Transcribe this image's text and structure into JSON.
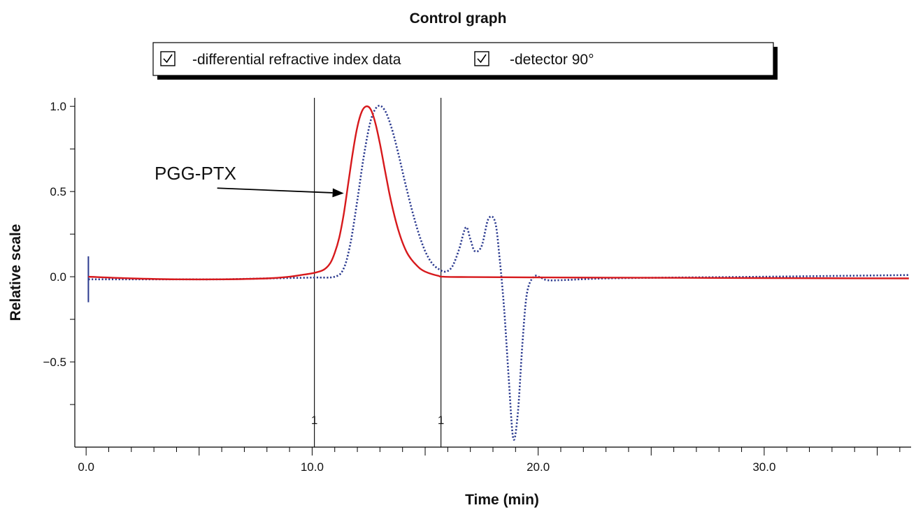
{
  "chart_data": {
    "type": "line",
    "title": "Control graph",
    "xlabel": "Time (min)",
    "ylabel": "Relative scale",
    "xlim": [
      -0.5,
      36.5
    ],
    "ylim": [
      -1.0,
      1.05
    ],
    "x_tick_labels": [
      {
        "value": 0,
        "label": "0.0"
      },
      {
        "value": 10,
        "label": "10.0"
      },
      {
        "value": 20,
        "label": "20.0"
      },
      {
        "value": 30,
        "label": "30.0"
      }
    ],
    "y_tick_labels": [
      {
        "value": 1.0,
        "label": "1.0"
      },
      {
        "value": 0.5,
        "label": "0.5"
      },
      {
        "value": 0.0,
        "label": "0.0"
      },
      {
        "value": -0.5,
        "label": "−0.5"
      }
    ],
    "y_minor_ticks": [
      0.75,
      0.25,
      -0.25,
      -0.75
    ],
    "grid": false,
    "legend": {
      "placement": "top",
      "entries": [
        {
          "label": "-differential refractive index data",
          "checked": true
        },
        {
          "label": "-detector 90°",
          "checked": true
        }
      ]
    },
    "vertical_markers": [
      {
        "x": 10.1,
        "label": "1"
      },
      {
        "x": 15.7,
        "label": "1"
      }
    ],
    "start_marker": {
      "x": 0.1,
      "y_range": [
        0.12,
        -0.15
      ]
    },
    "annotation": {
      "text": "PGG-PTX",
      "arrow_from": [
        5.8,
        0.52
      ],
      "arrow_to": [
        11.4,
        0.49
      ]
    },
    "series": [
      {
        "name": "-differential refractive index data",
        "color": "#d7191c",
        "style": "solid",
        "x": [
          0.1,
          2,
          4,
          6,
          8,
          9,
          9.5,
          10,
          10.5,
          10.8,
          11.0,
          11.2,
          11.4,
          11.6,
          11.8,
          12.0,
          12.2,
          12.4,
          12.6,
          12.8,
          13.0,
          13.2,
          13.4,
          13.6,
          13.8,
          14.0,
          14.2,
          14.4,
          14.6,
          14.8,
          15.0,
          15.3,
          15.6,
          15.8,
          17,
          20,
          25,
          30,
          36.4
        ],
        "y": [
          0.0,
          -0.01,
          -0.015,
          -0.015,
          -0.01,
          0.0,
          0.01,
          0.02,
          0.04,
          0.08,
          0.14,
          0.23,
          0.37,
          0.55,
          0.73,
          0.88,
          0.97,
          1.0,
          0.98,
          0.9,
          0.78,
          0.64,
          0.5,
          0.38,
          0.28,
          0.2,
          0.14,
          0.1,
          0.07,
          0.045,
          0.03,
          0.015,
          0.005,
          0.0,
          -0.002,
          -0.004,
          -0.006,
          -0.008,
          -0.01
        ]
      },
      {
        "name": "-detector 90°",
        "color": "#2b3a8f",
        "style": "dotted",
        "x": [
          0.1,
          2,
          4,
          6,
          8,
          10,
          11,
          11.4,
          11.7,
          12.0,
          12.3,
          12.6,
          12.9,
          13.2,
          13.5,
          13.8,
          14.1,
          14.4,
          14.7,
          15.0,
          15.3,
          15.6,
          15.9,
          16.2,
          16.5,
          16.8,
          17.0,
          17.2,
          17.5,
          17.8,
          18.1,
          18.3,
          18.5,
          18.7,
          18.9,
          19.1,
          19.3,
          19.5,
          19.8,
          20.1,
          20.4,
          21,
          23,
          26,
          30,
          36.4
        ],
        "y": [
          -0.015,
          -0.015,
          -0.015,
          -0.015,
          -0.01,
          -0.005,
          0.0,
          0.05,
          0.2,
          0.45,
          0.72,
          0.92,
          1.0,
          0.98,
          0.88,
          0.73,
          0.56,
          0.4,
          0.26,
          0.15,
          0.08,
          0.045,
          0.03,
          0.06,
          0.16,
          0.29,
          0.22,
          0.15,
          0.18,
          0.34,
          0.32,
          0.1,
          -0.2,
          -0.6,
          -0.95,
          -0.8,
          -0.4,
          -0.1,
          0.0,
          -0.005,
          -0.02,
          -0.02,
          -0.01,
          -0.005,
          0.0,
          0.01
        ]
      }
    ]
  }
}
